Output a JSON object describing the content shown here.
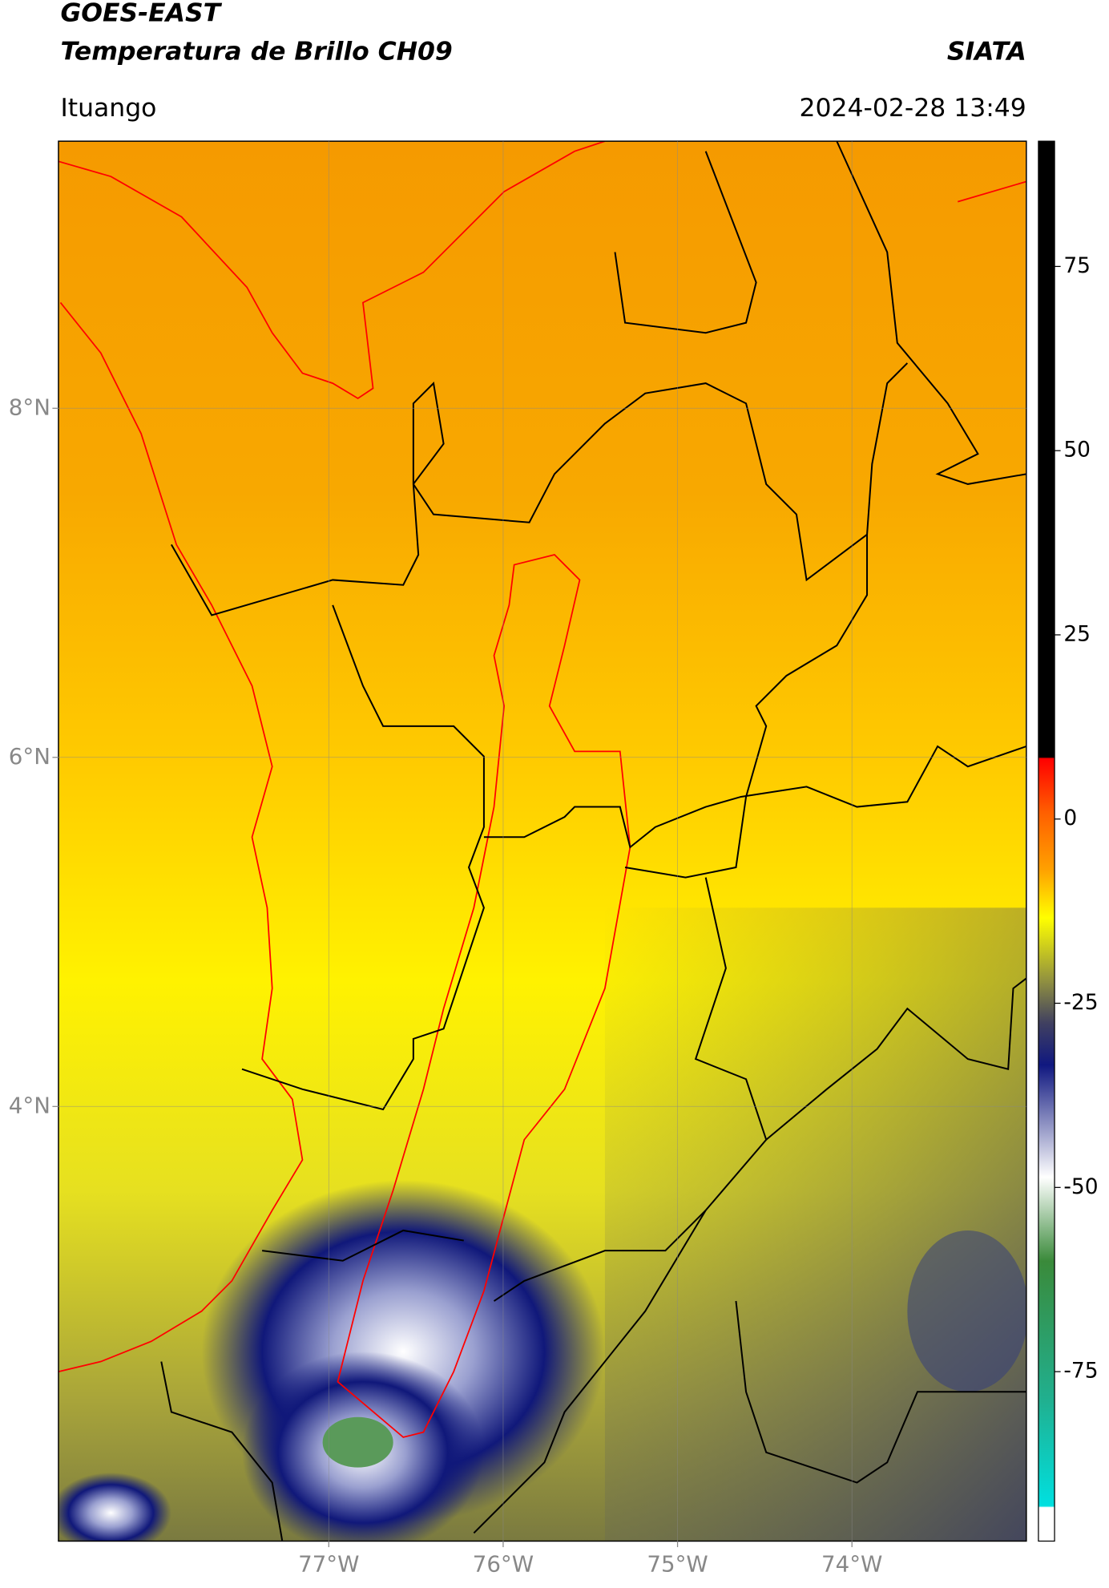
{
  "header": {
    "title": "GOES-EAST",
    "subtitle": "Temperatura de Brillo CH09",
    "org": "SIATA",
    "region": "Ituango",
    "datetime": "2024-02-28 13:49"
  },
  "map": {
    "xlim": [
      -78.55,
      -73.0
    ],
    "ylim": [
      1.51,
      9.53
    ],
    "xticks": [
      {
        "value": -77,
        "label": "77°W"
      },
      {
        "value": -76,
        "label": "76°W"
      },
      {
        "value": -75,
        "label": "75°W"
      },
      {
        "value": -74,
        "label": "74°W"
      }
    ],
    "yticks": [
      {
        "value": 8,
        "label": "8°N"
      },
      {
        "value": 6,
        "label": "6°N"
      },
      {
        "value": 4,
        "label": "4°N"
      }
    ],
    "grid": true
  },
  "colorbar": {
    "lim": [
      -98,
      92
    ],
    "ticks": [
      75,
      50,
      25,
      0,
      -25,
      -50,
      -75
    ]
  }
}
